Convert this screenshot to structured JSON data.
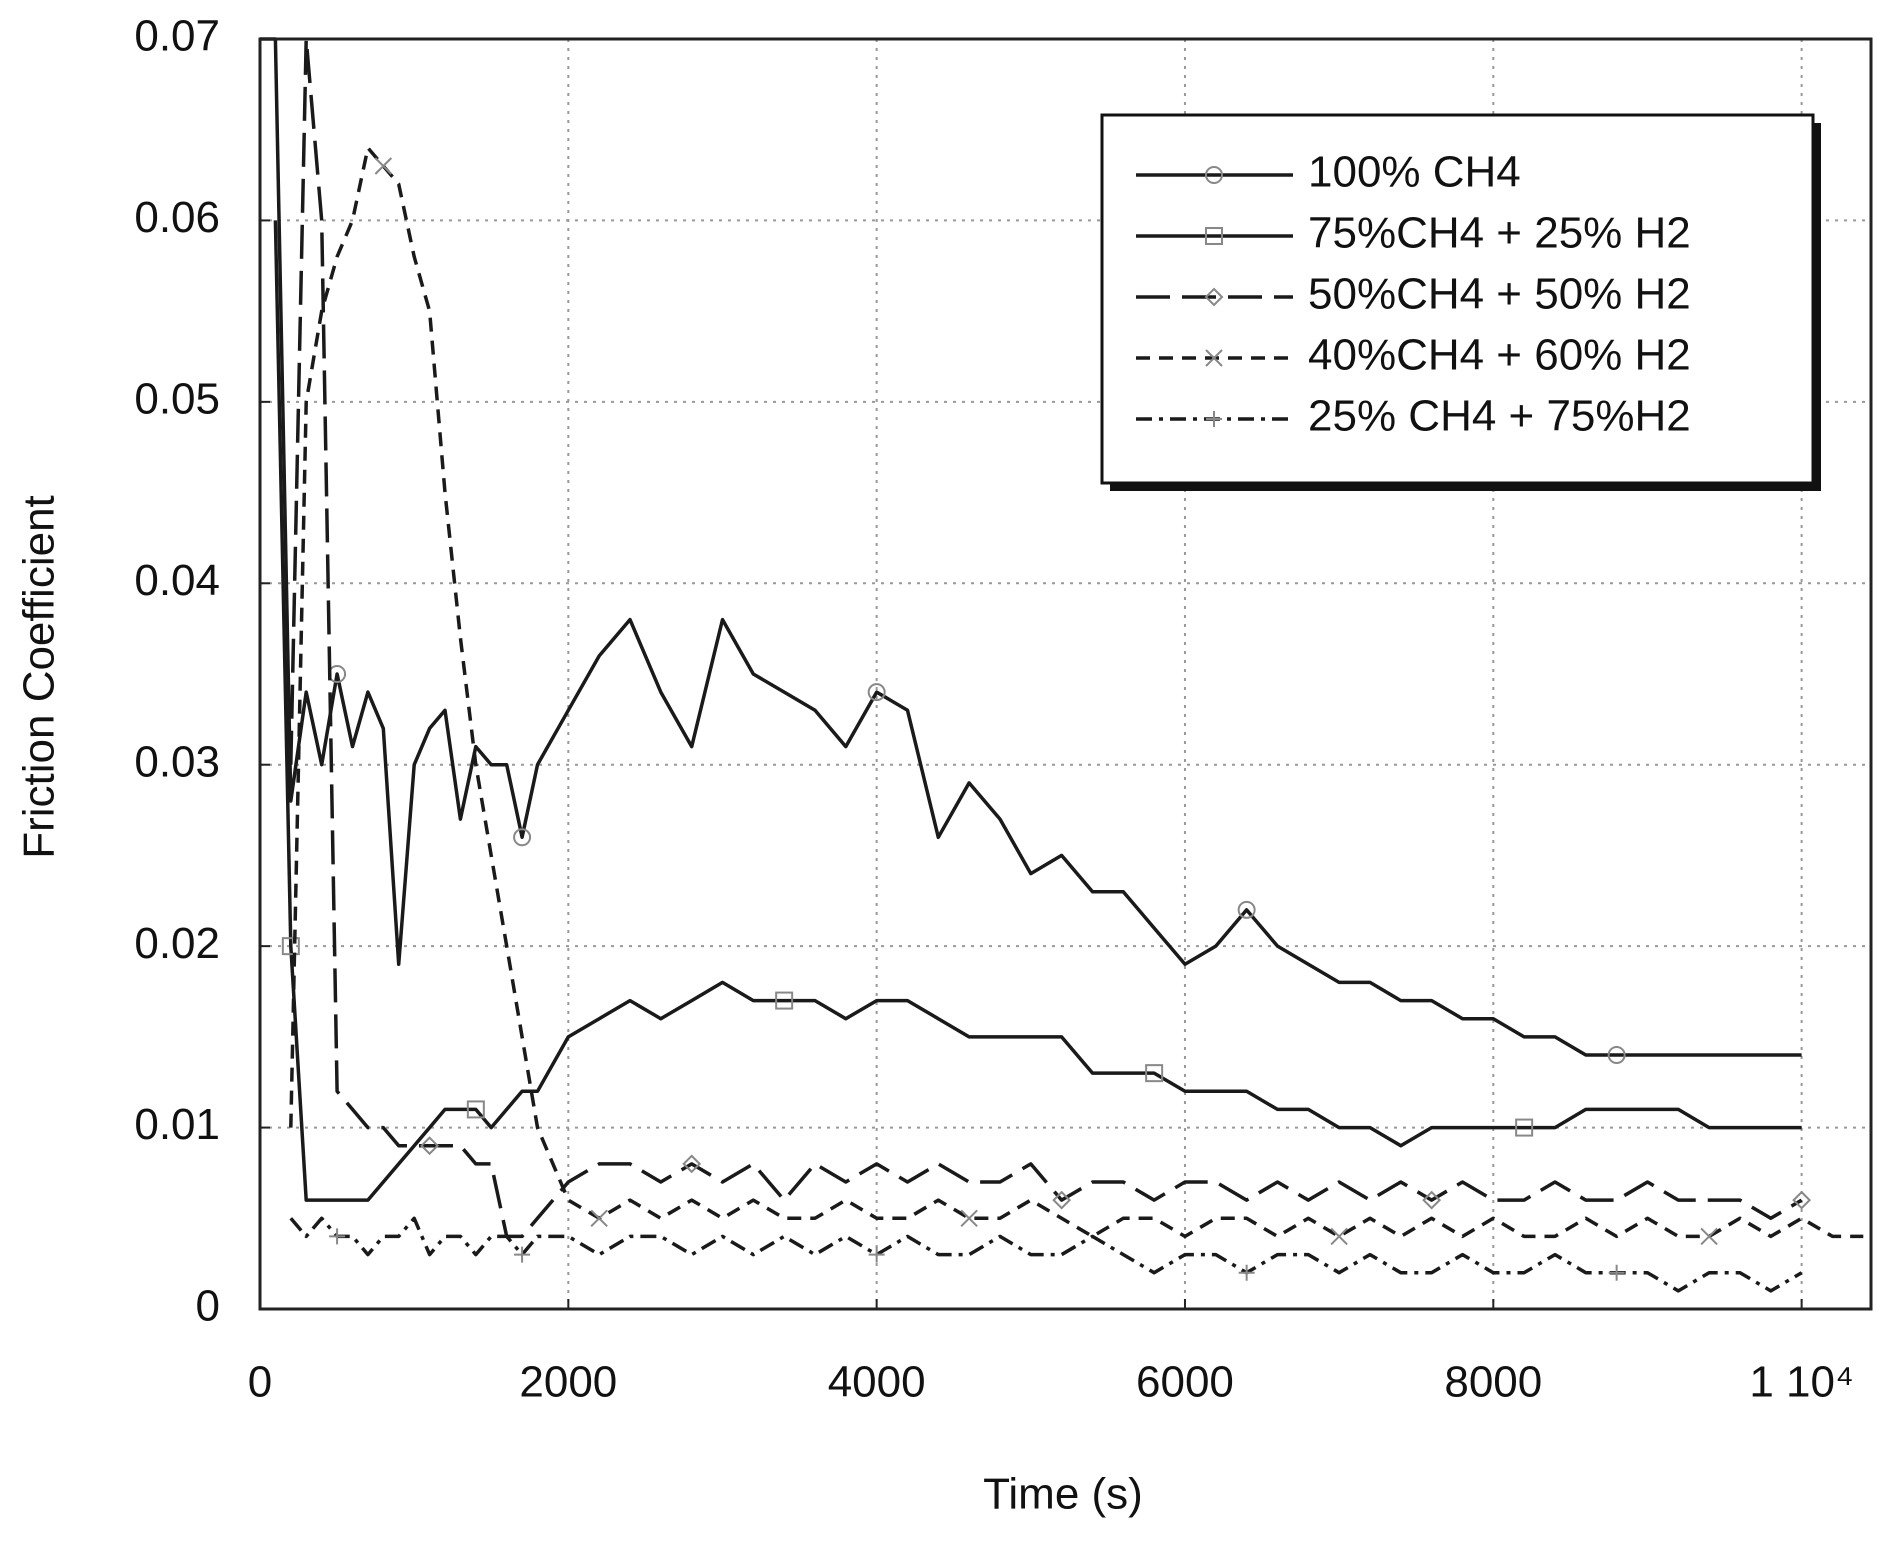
{
  "chart_data": {
    "type": "line",
    "xlabel": "Time (s)",
    "ylabel": "Friction Coefficient",
    "x": [
      0,
      100,
      200,
      300,
      400,
      500,
      600,
      700,
      800,
      900,
      1000,
      1100,
      1200,
      1300,
      1400,
      1500,
      1600,
      1700,
      1800,
      2000,
      2200,
      2400,
      2600,
      2800,
      3000,
      3200,
      3400,
      3600,
      3800,
      4000,
      4200,
      4400,
      4600,
      4800,
      5000,
      5200,
      5400,
      5600,
      5800,
      6000,
      6200,
      6400,
      6600,
      6800,
      7000,
      7200,
      7400,
      7600,
      7800,
      8000,
      8200,
      8400,
      8600,
      8800,
      9000,
      9200,
      9400,
      9600,
      9800,
      10000,
      10200,
      10400
    ],
    "xlim": [
      0,
      10450
    ],
    "ylim": [
      0,
      0.07
    ],
    "xticks": [
      0,
      2000,
      4000,
      6000,
      8000,
      {
        "value": 10000,
        "label": "1 10⁴"
      }
    ],
    "yticks": [
      0,
      0.01,
      0.02,
      0.03,
      0.04,
      0.05,
      0.06,
      0.07
    ],
    "grid": true,
    "legend": "upper right",
    "series": [
      {
        "name": "100% CH4",
        "color": "#1a1a1a",
        "linestyle": "solid",
        "marker": "circle",
        "values": [
          0.07,
          0.07,
          0.028,
          0.034,
          0.03,
          0.035,
          0.031,
          0.034,
          0.032,
          0.019,
          0.03,
          0.032,
          0.033,
          0.027,
          0.031,
          0.03,
          0.03,
          0.026,
          0.03,
          0.033,
          0.036,
          0.038,
          0.034,
          0.031,
          0.038,
          0.035,
          0.034,
          0.033,
          0.031,
          0.034,
          0.033,
          0.026,
          0.029,
          0.027,
          0.024,
          0.025,
          0.023,
          0.023,
          0.021,
          0.019,
          0.02,
          0.022,
          0.02,
          0.019,
          0.018,
          0.018,
          0.017,
          0.017,
          0.016,
          0.016,
          0.015,
          0.015,
          0.014,
          0.014,
          0.014,
          0.014,
          0.014,
          0.014,
          0.014,
          0.014,
          null,
          null
        ]
      },
      {
        "name": "75%CH4 + 25% H2",
        "color": "#1a1a1a",
        "linestyle": "solid",
        "marker": "square",
        "values": [
          null,
          0.06,
          0.02,
          0.006,
          0.006,
          0.006,
          0.006,
          0.006,
          0.007,
          0.008,
          0.009,
          0.01,
          0.011,
          0.011,
          0.011,
          0.01,
          0.011,
          0.012,
          0.012,
          0.015,
          0.016,
          0.017,
          0.016,
          0.017,
          0.018,
          0.017,
          0.017,
          0.017,
          0.016,
          0.017,
          0.017,
          0.016,
          0.015,
          0.015,
          0.015,
          0.015,
          0.013,
          0.013,
          0.013,
          0.012,
          0.012,
          0.012,
          0.011,
          0.011,
          0.01,
          0.01,
          0.009,
          0.01,
          0.01,
          0.01,
          0.01,
          0.01,
          0.011,
          0.011,
          0.011,
          0.011,
          0.01,
          0.01,
          0.01,
          0.01,
          null,
          null
        ]
      },
      {
        "name": "50%CH4 + 50% H2",
        "color": "#1a1a1a",
        "linestyle": "longdash",
        "marker": "diamond",
        "values": [
          null,
          null,
          0.03,
          0.07,
          0.06,
          0.012,
          0.011,
          0.01,
          0.01,
          0.009,
          0.009,
          0.009,
          0.009,
          0.009,
          0.008,
          0.008,
          0.004,
          0.004,
          0.005,
          0.007,
          0.008,
          0.008,
          0.007,
          0.008,
          0.007,
          0.008,
          0.006,
          0.008,
          0.007,
          0.008,
          0.007,
          0.008,
          0.007,
          0.007,
          0.008,
          0.006,
          0.007,
          0.007,
          0.006,
          0.007,
          0.007,
          0.006,
          0.007,
          0.006,
          0.007,
          0.006,
          0.007,
          0.006,
          0.007,
          0.006,
          0.006,
          0.007,
          0.006,
          0.006,
          0.007,
          0.006,
          0.006,
          0.006,
          0.005,
          0.006,
          null,
          null
        ]
      },
      {
        "name": "40%CH4 + 60% H2",
        "color": "#1a1a1a",
        "linestyle": "dashed",
        "marker": "cross",
        "values": [
          null,
          null,
          0.01,
          0.05,
          0.055,
          0.058,
          0.06,
          0.064,
          0.063,
          0.062,
          0.058,
          0.055,
          0.045,
          0.037,
          0.03,
          0.025,
          0.02,
          0.015,
          0.01,
          0.006,
          0.005,
          0.006,
          0.005,
          0.006,
          0.005,
          0.006,
          0.005,
          0.005,
          0.006,
          0.005,
          0.005,
          0.006,
          0.005,
          0.005,
          0.006,
          0.005,
          0.004,
          0.005,
          0.005,
          0.004,
          0.005,
          0.005,
          0.004,
          0.005,
          0.004,
          0.005,
          0.004,
          0.005,
          0.004,
          0.005,
          0.004,
          0.004,
          0.005,
          0.004,
          0.005,
          0.004,
          0.004,
          0.005,
          0.004,
          0.005,
          0.004,
          0.004
        ]
      },
      {
        "name": "25% CH4 + 75%H2",
        "color": "#1a1a1a",
        "linestyle": "dashdot",
        "marker": "plus",
        "values": [
          null,
          null,
          0.005,
          0.004,
          0.005,
          0.004,
          0.004,
          0.003,
          0.004,
          0.004,
          0.005,
          0.003,
          0.004,
          0.004,
          0.003,
          0.004,
          0.004,
          0.003,
          0.004,
          0.004,
          0.003,
          0.004,
          0.004,
          0.003,
          0.004,
          0.003,
          0.004,
          0.003,
          0.004,
          0.003,
          0.004,
          0.003,
          0.003,
          0.004,
          0.003,
          0.003,
          0.004,
          0.003,
          0.002,
          0.003,
          0.003,
          0.002,
          0.003,
          0.003,
          0.002,
          0.003,
          0.002,
          0.002,
          0.003,
          0.002,
          0.002,
          0.003,
          0.002,
          0.002,
          0.002,
          0.001,
          0.002,
          0.002,
          0.001,
          0.002,
          null,
          null
        ]
      }
    ]
  }
}
